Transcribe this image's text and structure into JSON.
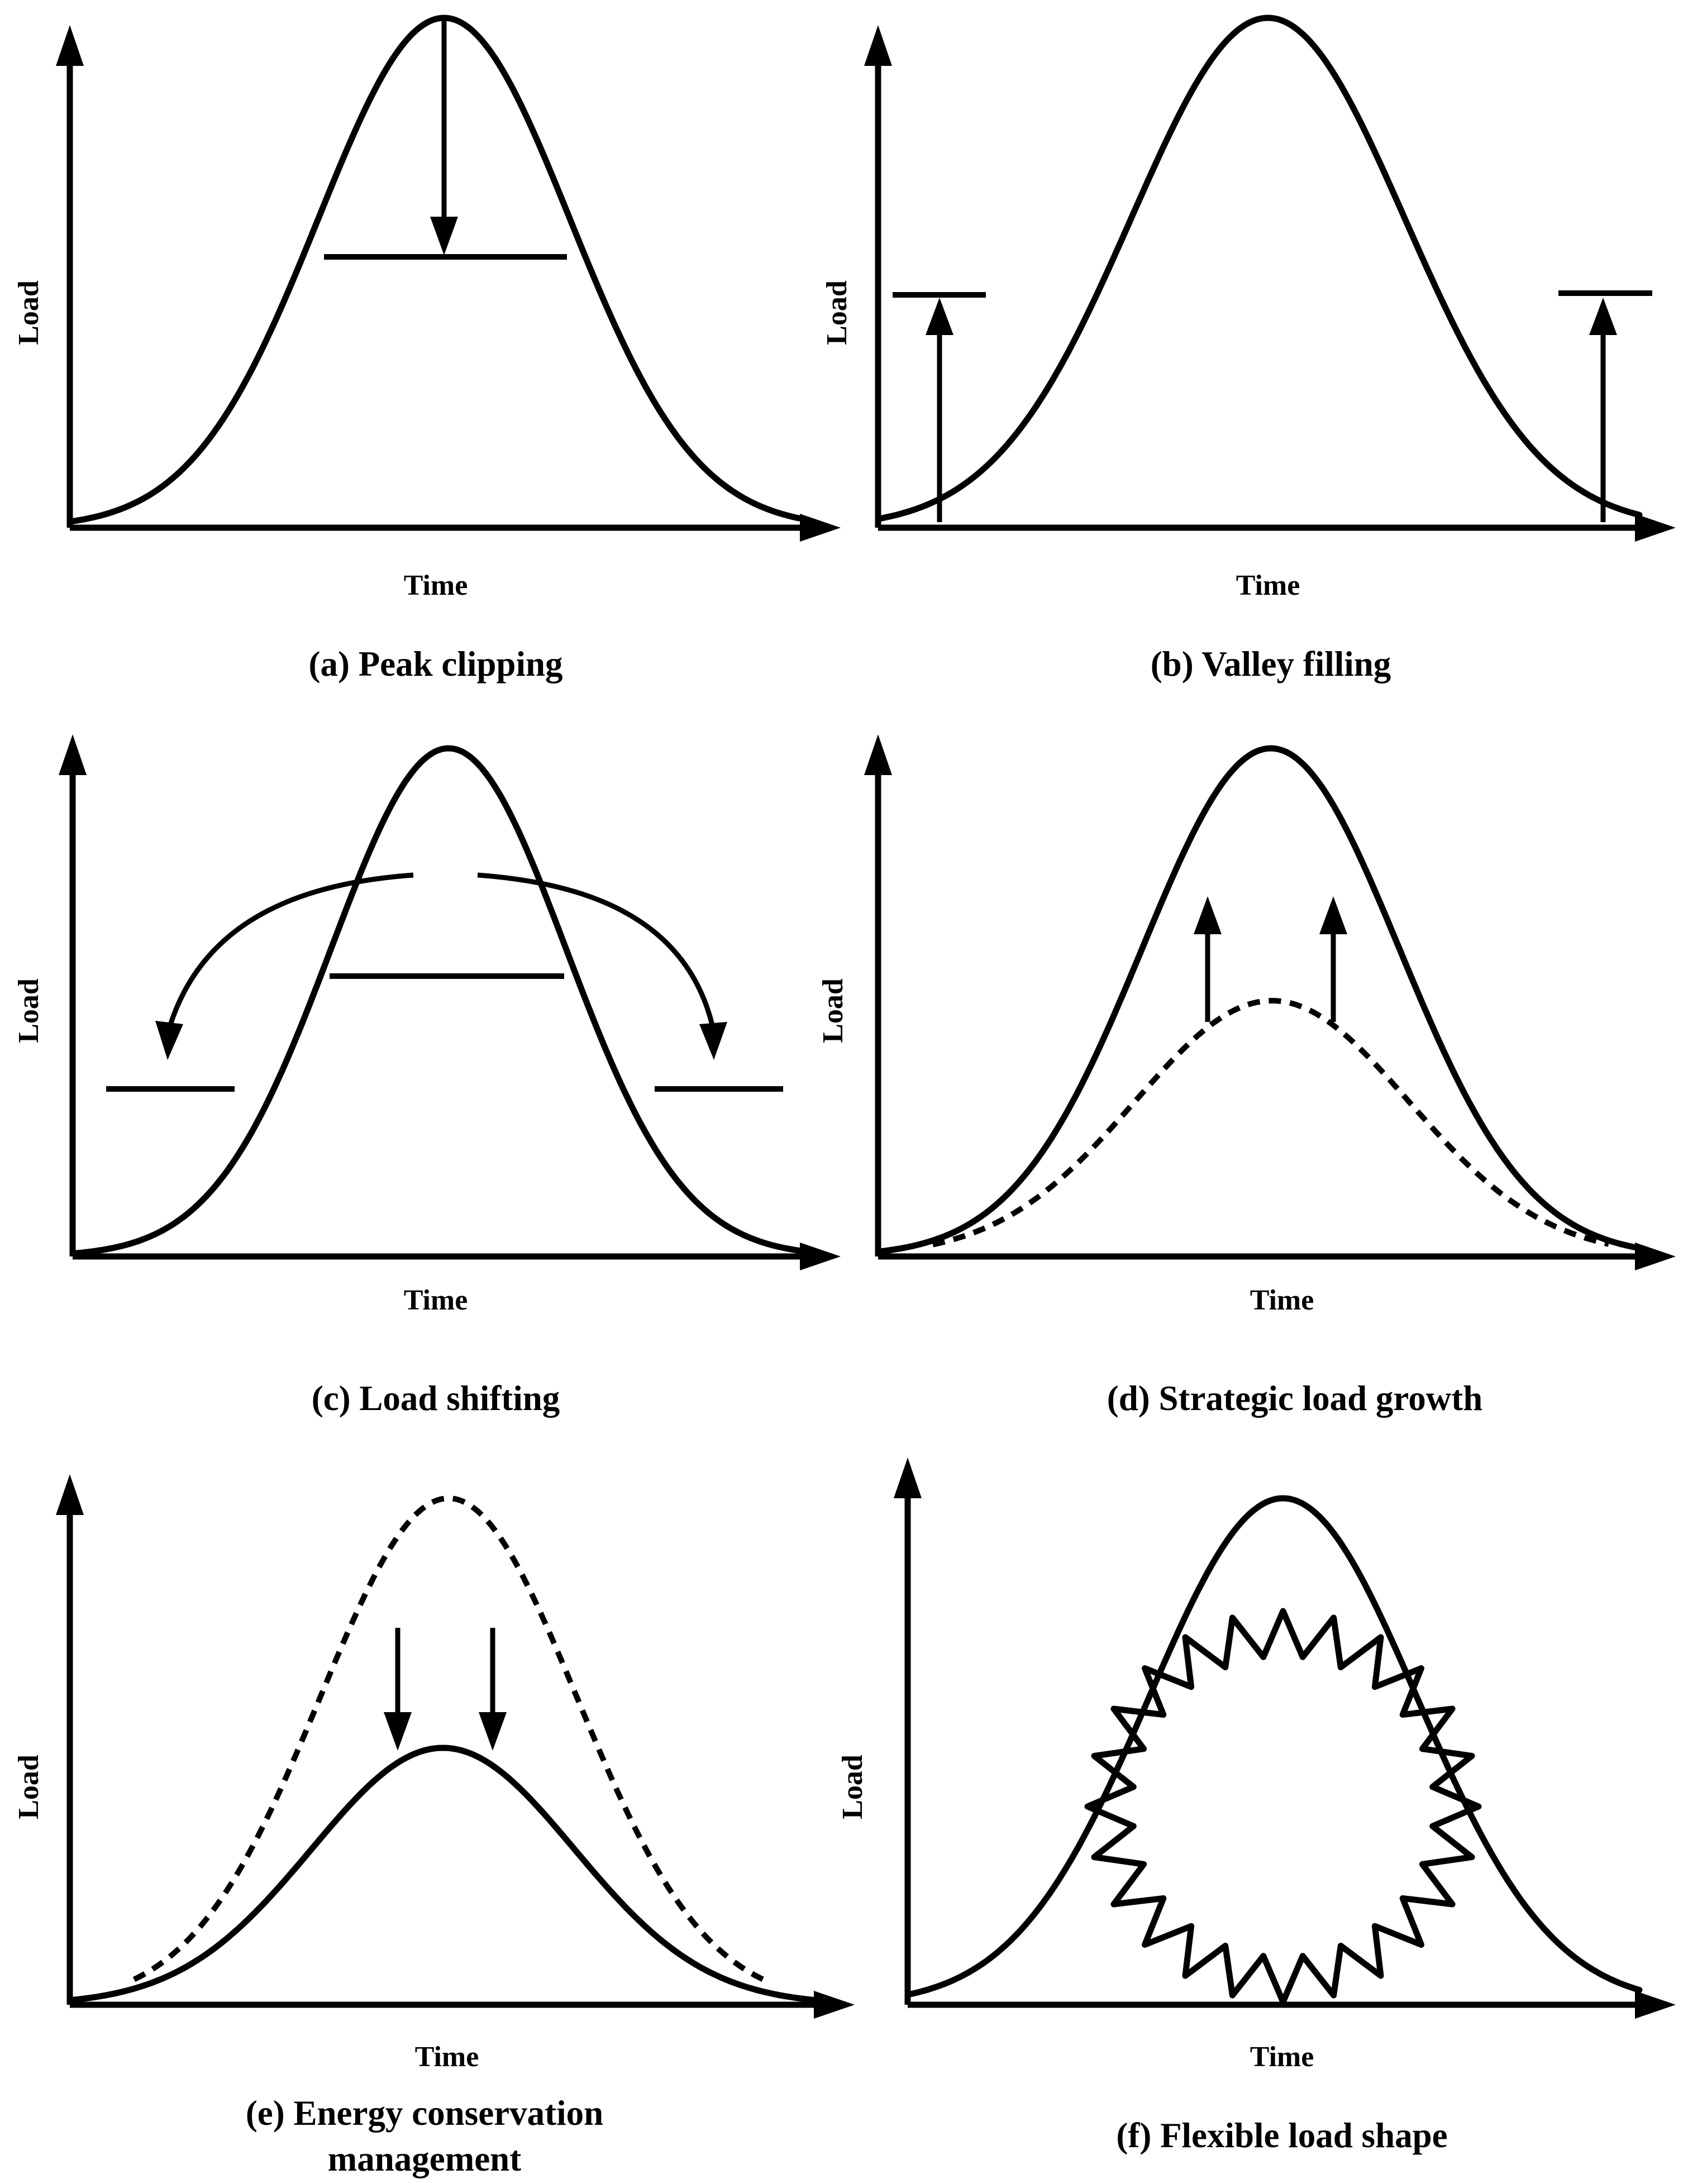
{
  "figure": {
    "panels": [
      {
        "id": "a",
        "caption": "(a) Peak clipping",
        "x_label": "Time",
        "y_label": "Load"
      },
      {
        "id": "b",
        "caption": "(b) Valley filling",
        "x_label": "Time",
        "y_label": "Load"
      },
      {
        "id": "c",
        "caption": "(c) Load shifting",
        "x_label": "Time",
        "y_label": "Load"
      },
      {
        "id": "d",
        "caption": "(d) Strategic load growth",
        "x_label": "Time",
        "y_label": "Load"
      },
      {
        "id": "e",
        "caption_line1": "(e) Energy conservation",
        "caption_line2": "management",
        "x_label": "Time",
        "y_label": "Load"
      },
      {
        "id": "f",
        "caption": "(f) Flexible load shape",
        "x_label": "Time",
        "y_label": "Load"
      }
    ]
  }
}
